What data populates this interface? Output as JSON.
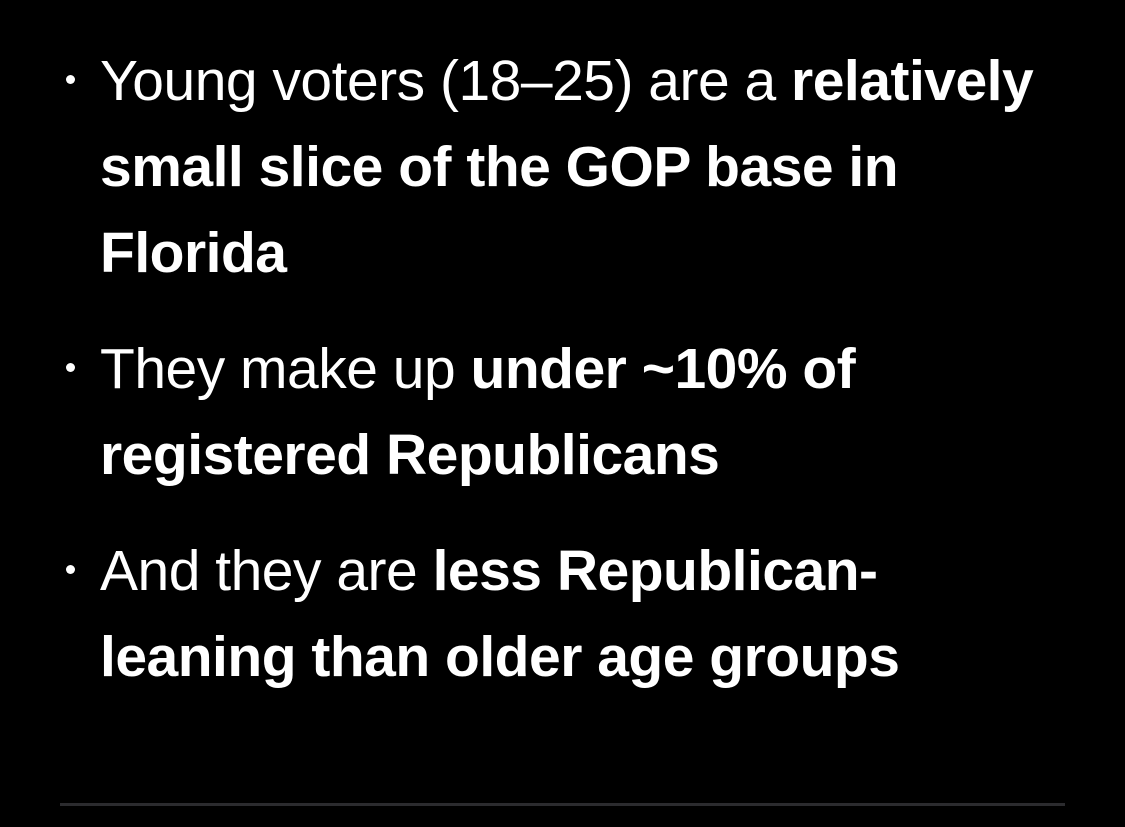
{
  "bullets": [
    {
      "normal": "Young voters (18–25) are a ",
      "bold": "relatively small slice of the GOP base in Florida"
    },
    {
      "normal": "They make up ",
      "bold": "under ~10% of registered Republicans"
    },
    {
      "normal": "And they are ",
      "bold": "less Republican-leaning than older age groups"
    }
  ],
  "colors": {
    "background": "#000000",
    "text": "#ffffff",
    "divider": "#2b2b2e"
  }
}
